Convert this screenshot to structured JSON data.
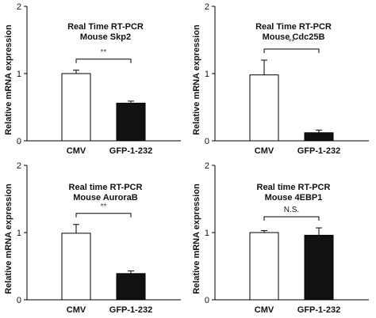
{
  "chart_data": [
    {
      "type": "bar",
      "title_lines": [
        "Real Time RT-PCR",
        "Mouse Skp2"
      ],
      "ylabel": "Relative mRNA expression",
      "ylim": [
        0,
        2
      ],
      "yticks": [
        "0",
        "1",
        "2"
      ],
      "categories": [
        "CMV",
        "GFP-1-232"
      ],
      "values": [
        1.0,
        0.56
      ],
      "errors": [
        0.05,
        0.03
      ],
      "bar_colors": [
        "#ffffff",
        "#111111"
      ],
      "significance": "**"
    },
    {
      "type": "bar",
      "title_lines": [
        "Real Time RT-PCR",
        "Mouse Cdc25B"
      ],
      "ylabel": "Relative mRNA expression",
      "ylim": [
        0,
        2
      ],
      "yticks": [
        "0",
        "1",
        "2"
      ],
      "categories": [
        "CMV",
        "GFP-1-232"
      ],
      "values": [
        0.98,
        0.12
      ],
      "errors": [
        0.22,
        0.04
      ],
      "bar_colors": [
        "#ffffff",
        "#111111"
      ],
      "significance": "**"
    },
    {
      "type": "bar",
      "title_lines": [
        "Real time RT-PCR",
        "Mouse AuroraB"
      ],
      "ylabel": "Relative mRNA expression",
      "ylim": [
        0,
        2
      ],
      "yticks": [
        "0",
        "1",
        "2"
      ],
      "categories": [
        "CMV",
        "GFP-1-232"
      ],
      "values": [
        0.99,
        0.39
      ],
      "errors": [
        0.13,
        0.04
      ],
      "bar_colors": [
        "#ffffff",
        "#111111"
      ],
      "significance": "**"
    },
    {
      "type": "bar",
      "title_lines": [
        "Real time RT-PCR",
        "Mouse 4EBP1"
      ],
      "ylabel": "Relative mRNA expression",
      "ylim": [
        0,
        2
      ],
      "yticks": [
        "0",
        "1",
        "2"
      ],
      "categories": [
        "CMV",
        "GFP-1-232"
      ],
      "values": [
        1.0,
        0.96
      ],
      "errors": [
        0.03,
        0.11
      ],
      "bar_colors": [
        "#ffffff",
        "#111111"
      ],
      "significance": "N.S."
    }
  ]
}
